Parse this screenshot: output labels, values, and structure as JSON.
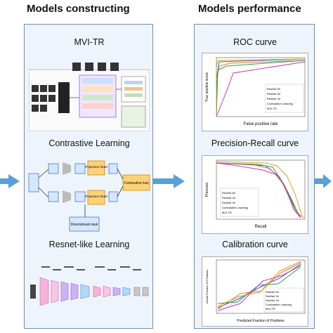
{
  "left": {
    "heading": "Models constructing",
    "sections": [
      {
        "title": "MVI-TR"
      },
      {
        "title": "Contrastive Learning",
        "boxes": [
          "Projection head",
          "Projection head",
          "Contrastive loss",
          "Downstream task"
        ]
      },
      {
        "title": "Resnet-like Learning"
      }
    ]
  },
  "right": {
    "heading": "Models performance",
    "sections": [
      {
        "title": "ROC curve",
        "xlabel": "False positive rate",
        "ylabel": "True positive score",
        "legend": [
          "ResNet 50",
          "ResNet 18",
          "ResNet 34",
          "Contrastive Learning",
          "MVI-TR"
        ]
      },
      {
        "title": "Precision-Recall curve",
        "xlabel": "Recall",
        "ylabel": "Precision",
        "legend": [
          "ResNet 50",
          "ResNet 18",
          "ResNet 34",
          "Contrastive Learning",
          "MVI-TR"
        ]
      },
      {
        "title": "Calibration curve",
        "xlabel": "Predicted Fraction of Positives",
        "ylabel": "Actual Fraction of Positives",
        "legend": [
          "ResNet 50",
          "ResNet 34",
          "ResNet 18",
          "Contrastive Learning",
          "MVI-TR"
        ]
      }
    ]
  },
  "colors": {
    "arrow": "#5a9fd6",
    "panel_border": "#6f8fb5",
    "series": [
      "#3a5fcd",
      "#e07a3a",
      "#2e9e4a",
      "#c23bc2",
      "#d9a019"
    ]
  }
}
